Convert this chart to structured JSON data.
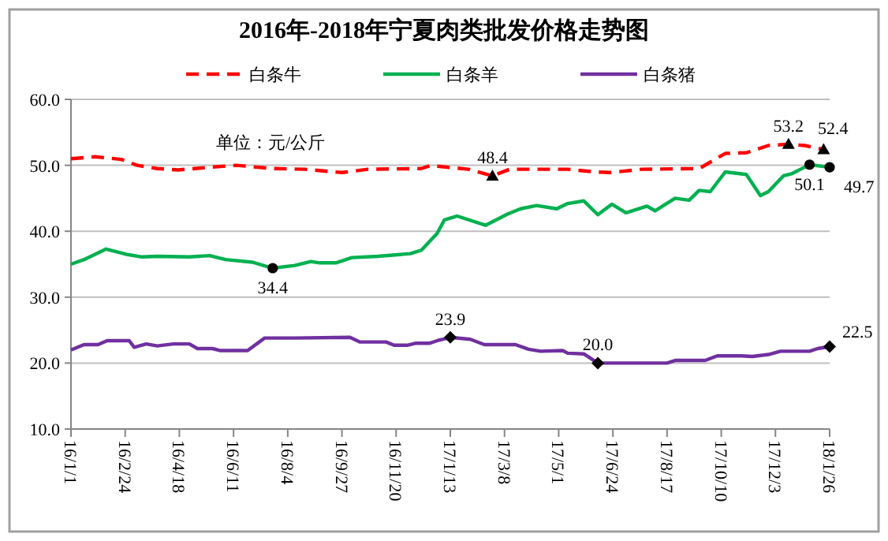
{
  "chart_data": {
    "type": "line",
    "title": "2016年-2018年宁夏肉类批发价格走势图",
    "xlim": [
      "2016-01-01",
      "2018-01-26"
    ],
    "xticks": [
      {
        "value": "2016-01-01",
        "label": "16/1/1"
      },
      {
        "value": "2016-02-24",
        "label": "16/2/24"
      },
      {
        "value": "2016-04-18",
        "label": "16/4/18"
      },
      {
        "value": "2016-06-11",
        "label": "16/6/11"
      },
      {
        "value": "2016-08-04",
        "label": "16/8/4"
      },
      {
        "value": "2016-09-27",
        "label": "16/9/27"
      },
      {
        "value": "2016-11-20",
        "label": "16/11/20"
      },
      {
        "value": "2017-01-13",
        "label": "17/1/13"
      },
      {
        "value": "2017-03-08",
        "label": "17/3/8"
      },
      {
        "value": "2017-05-01",
        "label": "17/5/1"
      },
      {
        "value": "2017-06-24",
        "label": "17/6/24"
      },
      {
        "value": "2017-08-17",
        "label": "17/8/17"
      },
      {
        "value": "2017-10-10",
        "label": "17/10/10"
      },
      {
        "value": "2017-12-03",
        "label": "17/12/3"
      },
      {
        "value": "2018-01-26",
        "label": "18/1/26"
      }
    ],
    "ylim": [
      10,
      60
    ],
    "yticks": [
      {
        "value": 10,
        "label": "10.0"
      },
      {
        "value": 20,
        "label": "20.0"
      },
      {
        "value": 30,
        "label": "30.0"
      },
      {
        "value": 40,
        "label": "40.0"
      },
      {
        "value": 50,
        "label": "50.0"
      },
      {
        "value": 60,
        "label": "60.0"
      }
    ],
    "grid": "y",
    "legend": "top",
    "series": [
      {
        "name": "白条牛",
        "color": "#ff0000",
        "line_style": "dashed",
        "x": [
          "2016-01-01",
          "2016-01-25",
          "2016-02-20",
          "2016-03-07",
          "2016-03-27",
          "2016-04-17",
          "2016-05-18",
          "2016-06-14",
          "2016-07-20",
          "2016-08-21",
          "2016-09-27",
          "2016-10-23",
          "2016-12-15",
          "2016-12-25",
          "2017-01-04",
          "2017-01-31",
          "2017-02-24",
          "2017-03-13",
          "2017-05-10",
          "2017-06-06",
          "2017-06-21",
          "2017-07-23",
          "2017-09-18",
          "2017-10-14",
          "2017-11-04",
          "2017-11-26",
          "2017-12-16",
          "2018-01-01",
          "2018-01-20"
        ],
        "values": [
          51.0,
          51.3,
          50.9,
          50.0,
          49.5,
          49.3,
          49.7,
          50.0,
          49.5,
          49.4,
          48.9,
          49.4,
          49.5,
          50.0,
          49.8,
          49.4,
          48.4,
          49.4,
          49.4,
          49.0,
          48.9,
          49.4,
          49.5,
          51.8,
          51.9,
          53.0,
          53.2,
          53.0,
          52.4
        ]
      },
      {
        "name": "白条羊",
        "color": "#00b050",
        "line_style": "solid",
        "x": [
          "2016-01-01",
          "2016-01-14",
          "2016-02-05",
          "2016-02-25",
          "2016-03-12",
          "2016-03-27",
          "2016-04-28",
          "2016-05-18",
          "2016-06-03",
          "2016-06-30",
          "2016-07-20",
          "2016-08-11",
          "2016-08-27",
          "2016-09-05",
          "2016-09-21",
          "2016-10-07",
          "2016-11-02",
          "2016-12-04",
          "2016-12-15",
          "2016-12-31",
          "2017-01-07",
          "2017-01-20",
          "2017-02-17",
          "2017-03-11",
          "2017-03-24",
          "2017-04-09",
          "2017-04-29",
          "2017-05-10",
          "2017-05-26",
          "2017-06-09",
          "2017-06-23",
          "2017-07-07",
          "2017-07-28",
          "2017-08-05",
          "2017-08-25",
          "2017-09-08",
          "2017-09-18",
          "2017-09-29",
          "2017-10-14",
          "2017-11-04",
          "2017-11-18",
          "2017-11-26",
          "2017-12-11",
          "2017-12-19",
          "2018-01-06",
          "2018-01-26"
        ],
        "values": [
          35.0,
          35.7,
          37.3,
          36.5,
          36.1,
          36.2,
          36.1,
          36.3,
          35.7,
          35.3,
          34.4,
          34.8,
          35.4,
          35.2,
          35.2,
          36.0,
          36.2,
          36.6,
          37.1,
          39.7,
          41.7,
          42.3,
          40.9,
          42.6,
          43.4,
          43.9,
          43.4,
          44.2,
          44.6,
          42.5,
          44.1,
          42.8,
          43.8,
          43.1,
          45.0,
          44.7,
          46.2,
          46.0,
          49.0,
          48.6,
          45.4,
          46.0,
          48.4,
          48.7,
          50.1,
          49.7
        ]
      },
      {
        "name": "白条猪",
        "color": "#7030a0",
        "line_style": "solid",
        "x": [
          "2016-01-01",
          "2016-01-14",
          "2016-01-28",
          "2016-02-06",
          "2016-02-28",
          "2016-03-04",
          "2016-03-16",
          "2016-03-27",
          "2016-04-12",
          "2016-04-28",
          "2016-05-06",
          "2016-05-21",
          "2016-05-29",
          "2016-06-25",
          "2016-07-12",
          "2016-08-11",
          "2016-10-05",
          "2016-10-15",
          "2016-11-10",
          "2016-11-18",
          "2016-12-01",
          "2016-12-09",
          "2016-12-23",
          "2016-12-31",
          "2017-01-13",
          "2017-02-02",
          "2017-02-16",
          "2017-03-19",
          "2017-04-01",
          "2017-04-13",
          "2017-05-05",
          "2017-05-10",
          "2017-05-26",
          "2017-06-09",
          "2017-08-17",
          "2017-08-25",
          "2017-09-24",
          "2017-10-06",
          "2017-10-30",
          "2017-11-10",
          "2017-11-26",
          "2017-12-08",
          "2018-01-06",
          "2018-01-14",
          "2018-01-26"
        ],
        "values": [
          22.0,
          22.8,
          22.8,
          23.4,
          23.4,
          22.4,
          22.9,
          22.6,
          22.9,
          22.9,
          22.2,
          22.2,
          21.9,
          21.9,
          23.8,
          23.8,
          23.9,
          23.2,
          23.2,
          22.7,
          22.7,
          23.0,
          23.0,
          23.4,
          23.9,
          23.6,
          22.8,
          22.8,
          22.1,
          21.8,
          21.9,
          21.5,
          21.4,
          20.0,
          20.0,
          20.4,
          20.4,
          21.1,
          21.1,
          21.0,
          21.3,
          21.8,
          21.8,
          22.2,
          22.5
        ]
      }
    ],
    "annotations": [
      "单位：元/公斤",
      {
        "text": "48.4",
        "x": "2017-02-24",
        "y": 48.4
      },
      {
        "text": "53.2",
        "x": "2017-12-16",
        "y": 53.2
      },
      {
        "text": "52.4",
        "x": "2018-01-20",
        "y": 52.4
      },
      {
        "text": "34.4",
        "x": "2016-07-20",
        "y": 34.4
      },
      {
        "text": "50.1",
        "x": "2018-01-06",
        "y": 50.1
      },
      {
        "text": "49.7",
        "x": "2018-01-26",
        "y": 49.7
      },
      {
        "text": "23.9",
        "x": "2017-01-13",
        "y": 23.9
      },
      {
        "text": "20.0",
        "x": "2017-06-09",
        "y": 20.0
      },
      {
        "text": "22.5",
        "x": "2018-01-26",
        "y": 22.5
      }
    ]
  }
}
